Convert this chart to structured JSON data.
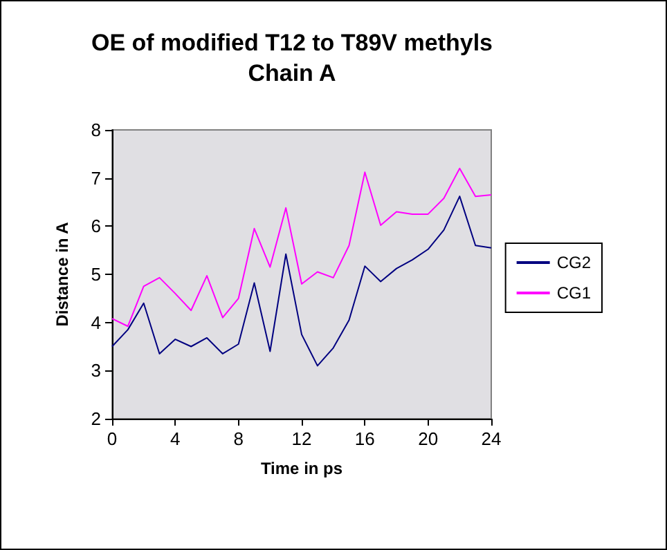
{
  "chart_data": {
    "type": "line",
    "title": "OE of modified T12 to T89V methyls\nChain A",
    "xlabel": "Time in ps",
    "ylabel": "Distance in A",
    "x": [
      0,
      1,
      2,
      3,
      4,
      5,
      6,
      7,
      8,
      9,
      10,
      11,
      12,
      13,
      14,
      15,
      16,
      17,
      18,
      19,
      20,
      21,
      22,
      23,
      24
    ],
    "series": [
      {
        "name": "CG2",
        "color": "#000080",
        "values": [
          3.5,
          3.85,
          4.4,
          3.35,
          3.65,
          3.5,
          3.68,
          3.35,
          3.55,
          4.82,
          3.4,
          5.42,
          3.75,
          3.1,
          3.47,
          4.05,
          5.17,
          4.85,
          5.12,
          5.3,
          5.52,
          5.92,
          6.62,
          5.6,
          5.55
        ]
      },
      {
        "name": "CG1",
        "color": "#ff00ff",
        "values": [
          4.08,
          3.92,
          4.75,
          4.93,
          4.6,
          4.25,
          4.97,
          4.1,
          4.5,
          5.95,
          5.15,
          6.38,
          4.8,
          5.05,
          4.93,
          5.6,
          7.12,
          6.02,
          6.3,
          6.25,
          6.25,
          6.58,
          7.2,
          6.62,
          6.65
        ]
      }
    ],
    "xlim": [
      0,
      24
    ],
    "xticks": [
      0,
      4,
      8,
      12,
      16,
      20,
      24
    ],
    "ylim": [
      2,
      8
    ],
    "yticks": [
      2,
      3,
      4,
      5,
      6,
      7,
      8
    ],
    "grid": false,
    "legend": "right",
    "marker": "none",
    "line_style": "solid"
  }
}
